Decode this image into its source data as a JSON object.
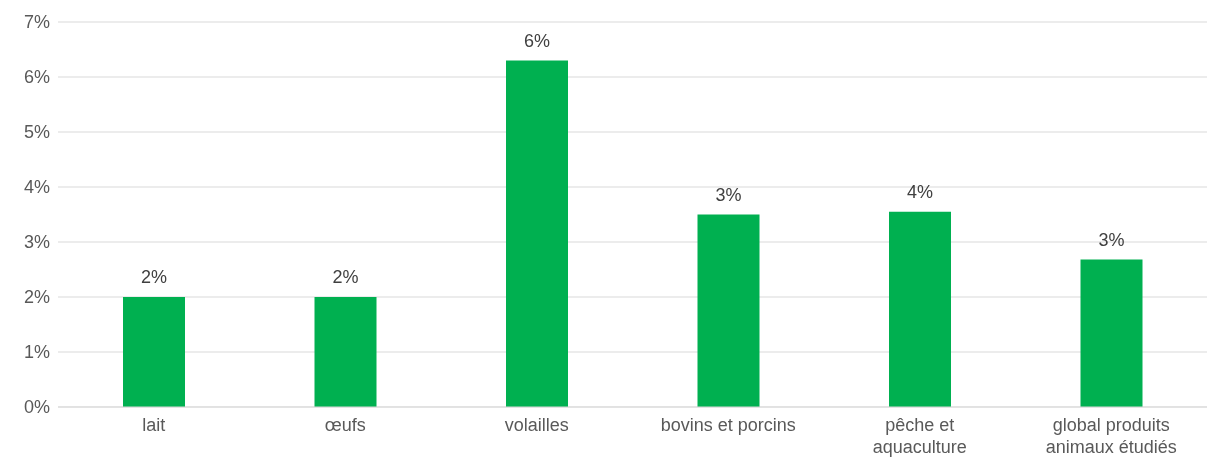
{
  "chart_data": {
    "type": "bar",
    "categories": [
      "lait",
      "œufs",
      "volailles",
      "bovins et porcins",
      "pêche et aquaculture",
      "global produits animaux étudiés"
    ],
    "series": [
      {
        "color": "#00b050",
        "values": [
          2.0,
          2.0,
          6.3,
          3.5,
          3.55,
          2.68
        ],
        "value_labels": [
          "2%",
          "2%",
          "6%",
          "3%",
          "4%",
          "3%"
        ]
      }
    ],
    "ylim": [
      0,
      7
    ],
    "yticks": [
      {
        "value": 0,
        "label": "0%"
      },
      {
        "value": 1,
        "label": "1%"
      },
      {
        "value": 2,
        "label": "2%"
      },
      {
        "value": 3,
        "label": "3%"
      },
      {
        "value": 4,
        "label": "4%"
      },
      {
        "value": 5,
        "label": "5%"
      },
      {
        "value": 6,
        "label": "6%"
      },
      {
        "value": 7,
        "label": "7%"
      }
    ],
    "grid": "y",
    "legend": false
  }
}
